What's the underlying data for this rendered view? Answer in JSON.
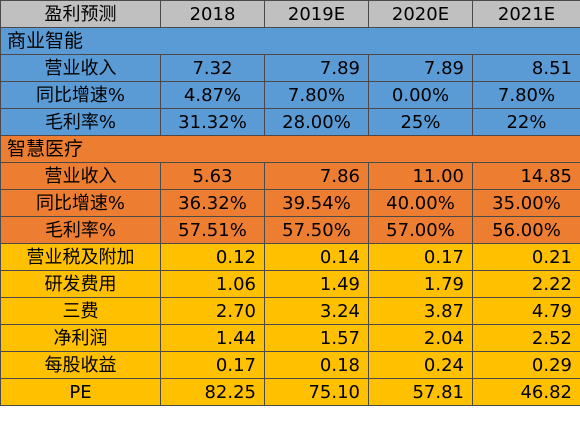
{
  "header": [
    "盈利预测",
    "2018",
    "2019E",
    "2020E",
    "2021E"
  ],
  "sections": [
    {
      "title": "商业智能",
      "color": "#5b9bd5",
      "rows": [
        {
          "label": "营业收入",
          "values": [
            "7.32",
            "7.89",
            "7.89",
            "8.51"
          ]
        },
        {
          "label": "同比增速%",
          "values": [
            "4.87%",
            "7.80%",
            "0.00%",
            "7.80%"
          ]
        },
        {
          "label": "毛利率%",
          "values": [
            "31.32%",
            "28.00%",
            "25%",
            "22%"
          ]
        }
      ]
    },
    {
      "title": "智慧医疗",
      "color": "#ed7d31",
      "rows": [
        {
          "label": "营业收入",
          "values": [
            "5.63",
            "7.86",
            "11.00",
            "14.85"
          ]
        },
        {
          "label": "同比增速%",
          "values": [
            "36.32%",
            "39.54%",
            "40.00%",
            "35.00%"
          ]
        },
        {
          "label": "毛利率%",
          "values": [
            "57.51%",
            "57.50%",
            "57.00%",
            "56.00%"
          ]
        }
      ]
    }
  ],
  "summary": {
    "color": "#ffc000",
    "rows": [
      {
        "label": "营业税及附加",
        "values": [
          "0.12",
          "0.14",
          "0.17",
          "0.21"
        ]
      },
      {
        "label": "研发费用",
        "values": [
          "1.06",
          "1.49",
          "1.79",
          "2.22"
        ]
      },
      {
        "label": "三费",
        "values": [
          "2.70",
          "3.24",
          "3.87",
          "4.79"
        ]
      },
      {
        "label": "净利润",
        "values": [
          "1.44",
          "1.57",
          "2.04",
          "2.52"
        ]
      },
      {
        "label": "每股收益",
        "values": [
          "0.17",
          "0.18",
          "0.24",
          "0.29"
        ]
      },
      {
        "label": "PE",
        "values": [
          "82.25",
          "75.10",
          "57.81",
          "46.82"
        ]
      }
    ]
  }
}
